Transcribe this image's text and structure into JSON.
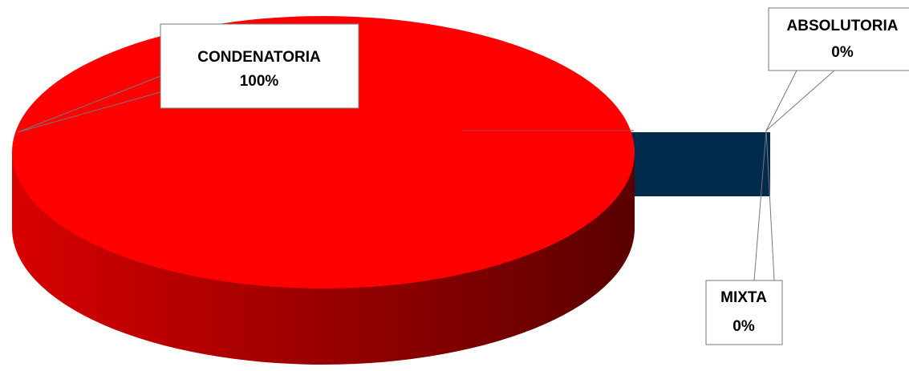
{
  "chart_data": {
    "type": "pie",
    "categories": [
      "CONDENATORIA",
      "ABSOLUTORIA",
      "MIXTA"
    ],
    "values": [
      100,
      0,
      0
    ],
    "value_labels": [
      "100%",
      "0%",
      "0%"
    ],
    "colors": [
      "#ff0000",
      "#1f3864",
      "#002b4d"
    ]
  }
}
